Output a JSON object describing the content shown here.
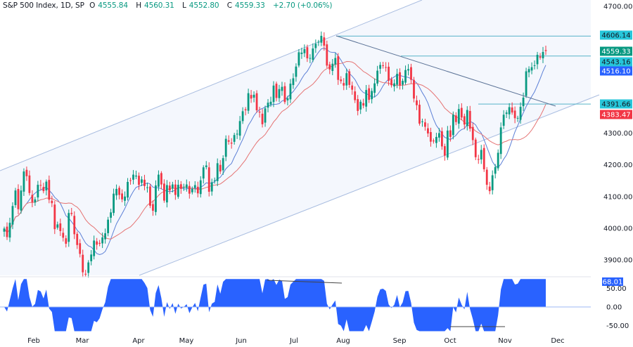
{
  "header": {
    "symbol": "S&P 500 Index, 1D, SP",
    "open_label": "O",
    "open": "4555.84",
    "high_label": "H",
    "high": "4560.31",
    "low_label": "L",
    "low": "4552.80",
    "close_label": "C",
    "close": "4559.33",
    "change": "+2.70 (+0.06%)"
  },
  "colors": {
    "up": "#089981",
    "down": "#f23645",
    "ma_fast": "#5b7fd6",
    "ma_slow": "#e57373",
    "channel": "#a9bde0",
    "level": "#56b4c8",
    "trend": "#5a7296",
    "osc": "#2962ff"
  },
  "price_axis": {
    "ticks": [
      "4700.00",
      "4300.00",
      "4200.00",
      "4100.00",
      "4000.00",
      "3900.00"
    ],
    "labels": [
      {
        "value": "4606.14",
        "bg": "#26c6da",
        "fg": "#131722"
      },
      {
        "value": "4559.33",
        "bg": "#089981",
        "fg": "#ffffff"
      },
      {
        "value": "4543.16",
        "bg": "#26c6da",
        "fg": "#131722"
      },
      {
        "value": "4516.10",
        "bg": "#2962ff",
        "fg": "#ffffff"
      },
      {
        "value": "4391.66",
        "bg": "#26c6da",
        "fg": "#131722"
      },
      {
        "value": "4383.47",
        "bg": "#f23645",
        "fg": "#ffffff"
      }
    ]
  },
  "osc_axis": {
    "ticks": [
      "50.00",
      "0.00",
      "-50.00"
    ],
    "current": "68.01"
  },
  "time_axis": [
    "Feb",
    "Mar",
    "Apr",
    "May",
    "Jun",
    "Jul",
    "Aug",
    "Sep",
    "Oct",
    "Nov",
    "Dec"
  ],
  "chart_data": {
    "type": "candlestick",
    "title": "S&P 500 Index, 1D, SP",
    "xlabel": "",
    "ylabel": "",
    "ylim": [
      3880,
      4720
    ],
    "x_ticks": [
      "Feb",
      "Mar",
      "Apr",
      "May",
      "Jun",
      "Jul",
      "Aug",
      "Sep",
      "Oct",
      "Nov",
      "Dec"
    ],
    "horizontal_levels": [
      4606.14,
      4543.16,
      4391.66
    ],
    "moving_averages": [
      {
        "name": "fast MA",
        "last": 4516.1
      },
      {
        "name": "slow MA",
        "last": 4383.47
      }
    ],
    "last": {
      "open": 4555.84,
      "high": 4560.31,
      "low": 4552.8,
      "close": 4559.33,
      "change": 2.7,
      "change_pct": 0.06
    },
    "closes": [
      3999,
      3972,
      4017,
      4070,
      4119,
      4060,
      4119,
      4179,
      4164,
      4111,
      4082,
      4091,
      4137,
      4136,
      4117,
      4147,
      4090,
      4079,
      3997,
      4012,
      3991,
      3970,
      3951,
      4048,
      4045,
      3981,
      3947,
      3919,
      3861,
      3855,
      3892,
      3917,
      3961,
      3948,
      3951,
      3971,
      3984,
      4027,
      4050,
      4109,
      4124,
      4105,
      4091,
      4100,
      4146,
      4151,
      4169,
      4166,
      4137,
      4154,
      4133,
      4129,
      4071,
      4055,
      4135,
      4169,
      4138,
      4087,
      4136,
      4119,
      4138,
      4105,
      4137,
      4124,
      4130,
      4138,
      4109,
      4124,
      4136,
      4110,
      4151,
      4192,
      4198,
      4115,
      4145,
      4151,
      4205,
      4179,
      4221,
      4282,
      4273,
      4267,
      4294,
      4298,
      4338,
      4369,
      4372,
      4426,
      4409,
      4421,
      4372,
      4365,
      4328,
      4378,
      4396,
      4399,
      4450,
      4411,
      4439,
      4446,
      4398,
      4410,
      4456,
      4473,
      4510,
      4555,
      4554,
      4565,
      4536,
      4537,
      4567,
      4582,
      4588,
      4607,
      4576,
      4513,
      4501,
      4519,
      4537,
      4468,
      4464,
      4450,
      4489,
      4452,
      4437,
      4404,
      4370,
      4399,
      4387,
      4436,
      4405,
      4433,
      4457,
      4497,
      4515,
      4514,
      4507,
      4465,
      4451,
      4457,
      4487,
      4450,
      4465,
      4499,
      4502,
      4468,
      4409,
      4388,
      4330,
      4337,
      4320,
      4299,
      4273,
      4274,
      4288,
      4300,
      4258,
      4229,
      4308,
      4288,
      4358,
      4335,
      4376,
      4349,
      4327,
      4373,
      4314,
      4278,
      4224,
      4217,
      4247,
      4186,
      4137,
      4117,
      4167,
      4193,
      4238,
      4318,
      4358,
      4365,
      4382,
      4365,
      4347,
      4348,
      4383,
      4412,
      4495,
      4502,
      4508,
      4514,
      4547,
      4538,
      4556,
      4559
    ]
  }
}
